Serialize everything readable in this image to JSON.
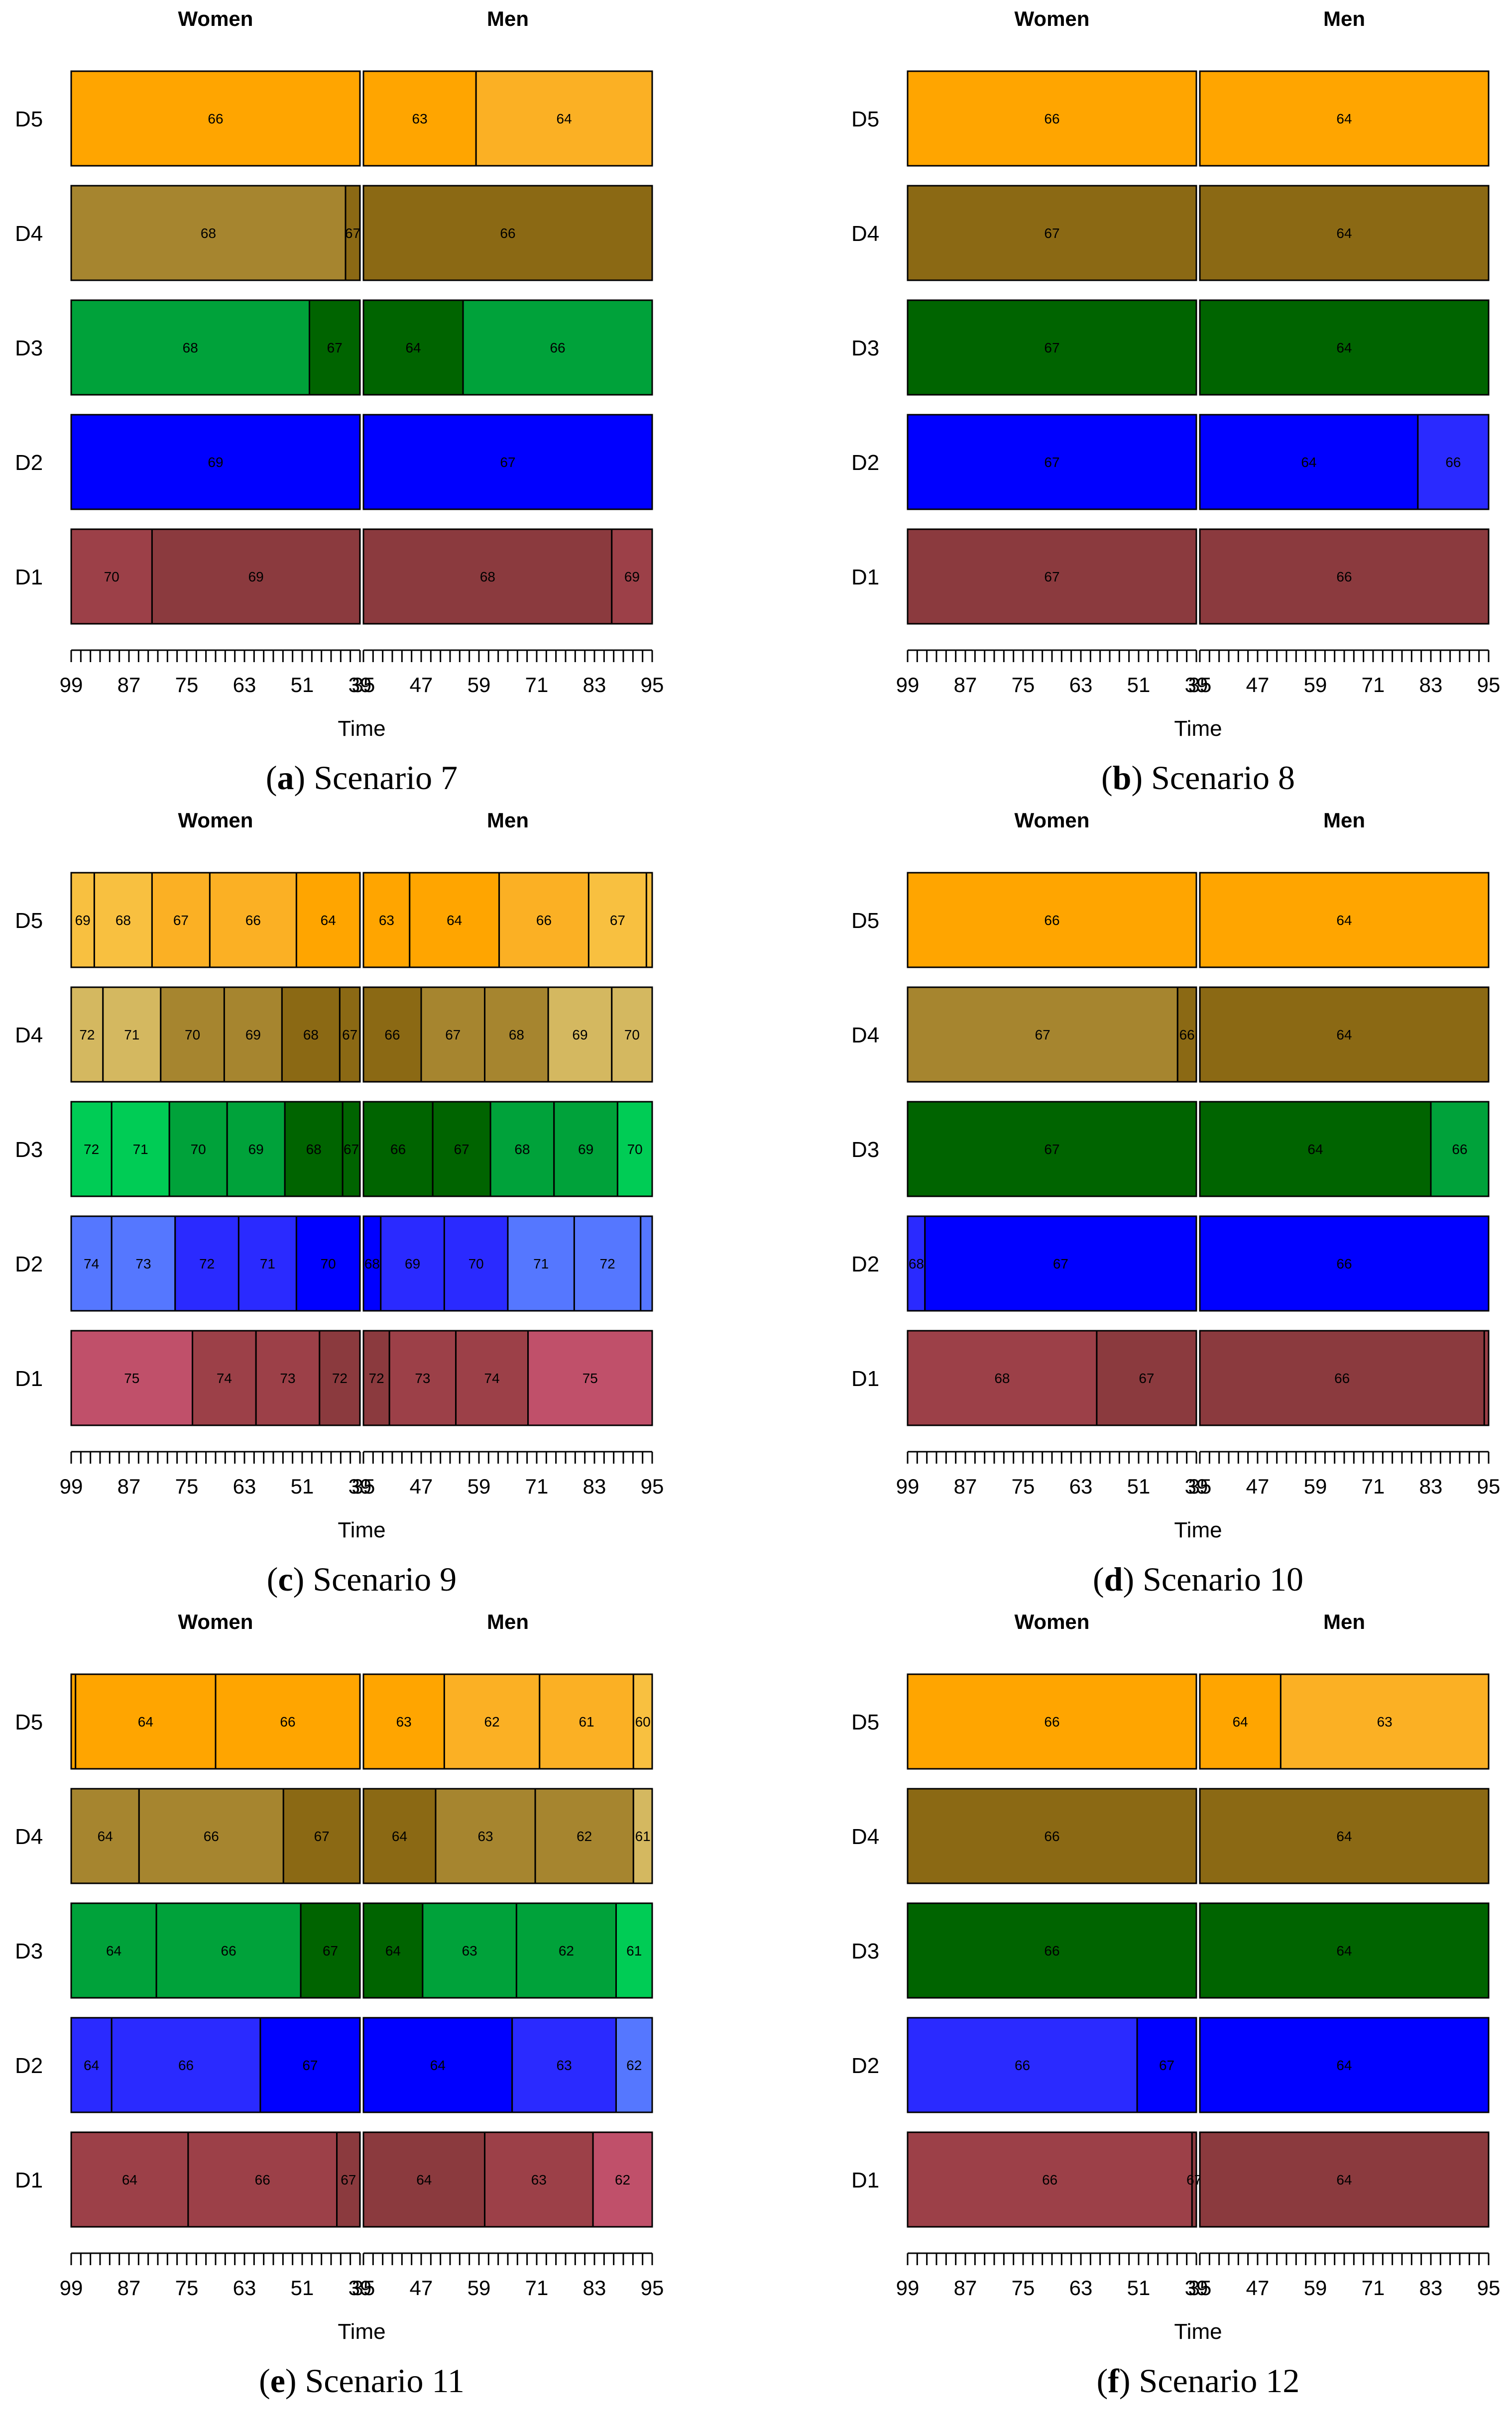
{
  "rows": [
    "D1",
    "D2",
    "D3",
    "D4",
    "D5"
  ],
  "shared": {
    "women_label": "Women",
    "men_label": "Men",
    "xlabel": "Time",
    "women_ticks": [
      "99",
      "87",
      "75",
      "63",
      "51",
      "39"
    ],
    "men_ticks": [
      "35",
      "47",
      "59",
      "71",
      "83",
      "95"
    ]
  },
  "colors": {
    "D1": {
      "light": "#c0506a",
      "mid": "#9c4048",
      "dark": "#8b3a3e"
    },
    "D2": {
      "light": "#5577ff",
      "mid": "#2a2aff",
      "dark": "#0000ff"
    },
    "D3": {
      "light": "#00cc55",
      "mid": "#00a23a",
      "dark": "#006400"
    },
    "D4": {
      "light": "#d4b860",
      "mid": "#a6852f",
      "dark": "#8b6914"
    },
    "D5": {
      "light": "#f8c040",
      "mid": "#fbb024",
      "dark": "#ffa500"
    }
  },
  "chart_data": [
    {
      "type": "bar",
      "caption_letter": "a",
      "caption_text": "Scenario 7",
      "women": {
        "D5": [
          {
            "label": "66",
            "width": 1.0,
            "shade": "dark"
          }
        ],
        "D4": [
          {
            "label": "68",
            "width": 0.95,
            "shade": "mid"
          },
          {
            "label": "67",
            "width": 0.05,
            "shade": "dark"
          }
        ],
        "D3": [
          {
            "label": "68",
            "width": 0.825,
            "shade": "mid"
          },
          {
            "label": "67",
            "width": 0.175,
            "shade": "dark"
          }
        ],
        "D2": [
          {
            "label": "69",
            "width": 1.0,
            "shade": "dark"
          }
        ],
        "D1": [
          {
            "label": "70",
            "width": 0.28,
            "shade": "mid"
          },
          {
            "label": "69",
            "width": 0.72,
            "shade": "dark"
          }
        ]
      },
      "men": {
        "D5": [
          {
            "label": "63",
            "width": 0.39,
            "shade": "dark"
          },
          {
            "label": "64",
            "width": 0.61,
            "shade": "mid"
          }
        ],
        "D4": [
          {
            "label": "66",
            "width": 1.0,
            "shade": "dark"
          }
        ],
        "D3": [
          {
            "label": "64",
            "width": 0.345,
            "shade": "dark"
          },
          {
            "label": "66",
            "width": 0.655,
            "shade": "mid"
          }
        ],
        "D2": [
          {
            "label": "67",
            "width": 1.0,
            "shade": "dark"
          }
        ],
        "D1": [
          {
            "label": "68",
            "width": 0.86,
            "shade": "dark"
          },
          {
            "label": "69",
            "width": 0.14,
            "shade": "mid"
          }
        ]
      }
    },
    {
      "type": "bar",
      "caption_letter": "b",
      "caption_text": "Scenario 8",
      "women": {
        "D5": [
          {
            "label": "66",
            "width": 1.0,
            "shade": "dark"
          }
        ],
        "D4": [
          {
            "label": "67",
            "width": 1.0,
            "shade": "dark"
          }
        ],
        "D3": [
          {
            "label": "67",
            "width": 1.0,
            "shade": "dark"
          }
        ],
        "D2": [
          {
            "label": "67",
            "width": 1.0,
            "shade": "dark"
          }
        ],
        "D1": [
          {
            "label": "67",
            "width": 1.0,
            "shade": "dark"
          }
        ]
      },
      "men": {
        "D5": [
          {
            "label": "64",
            "width": 1.0,
            "shade": "dark"
          }
        ],
        "D4": [
          {
            "label": "64",
            "width": 1.0,
            "shade": "dark"
          }
        ],
        "D3": [
          {
            "label": "64",
            "width": 1.0,
            "shade": "dark"
          }
        ],
        "D2": [
          {
            "label": "64",
            "width": 0.755,
            "shade": "dark"
          },
          {
            "label": "66",
            "width": 0.245,
            "shade": "mid"
          }
        ],
        "D1": [
          {
            "label": "66",
            "width": 1.0,
            "shade": "dark"
          }
        ]
      }
    },
    {
      "type": "bar",
      "caption_letter": "c",
      "caption_text": "Scenario 9",
      "women": {
        "D5": [
          {
            "label": "69",
            "width": 0.08,
            "shade": "light"
          },
          {
            "label": "68",
            "width": 0.2,
            "shade": "light"
          },
          {
            "label": "67",
            "width": 0.2,
            "shade": "mid"
          },
          {
            "label": "66",
            "width": 0.3,
            "shade": "mid"
          },
          {
            "label": "64",
            "width": 0.22,
            "shade": "dark"
          }
        ],
        "D4": [
          {
            "label": "72",
            "width": 0.11,
            "shade": "light"
          },
          {
            "label": "71",
            "width": 0.2,
            "shade": "light"
          },
          {
            "label": "70",
            "width": 0.22,
            "shade": "mid"
          },
          {
            "label": "69",
            "width": 0.2,
            "shade": "mid"
          },
          {
            "label": "68",
            "width": 0.2,
            "shade": "dark"
          },
          {
            "label": "67",
            "width": 0.07,
            "shade": "dark"
          }
        ],
        "D3": [
          {
            "label": "72",
            "width": 0.14,
            "shade": "light"
          },
          {
            "label": "71",
            "width": 0.2,
            "shade": "light"
          },
          {
            "label": "70",
            "width": 0.2,
            "shade": "mid"
          },
          {
            "label": "69",
            "width": 0.2,
            "shade": "mid"
          },
          {
            "label": "68",
            "width": 0.2,
            "shade": "dark"
          },
          {
            "label": "67",
            "width": 0.06,
            "shade": "dark"
          }
        ],
        "D2": [
          {
            "label": "74",
            "width": 0.14,
            "shade": "light"
          },
          {
            "label": "73",
            "width": 0.22,
            "shade": "light"
          },
          {
            "label": "72",
            "width": 0.22,
            "shade": "mid"
          },
          {
            "label": "71",
            "width": 0.2,
            "shade": "mid"
          },
          {
            "label": "70",
            "width": 0.22,
            "shade": "dark"
          }
        ],
        "D1": [
          {
            "label": "75",
            "width": 0.42,
            "shade": "light"
          },
          {
            "label": "74",
            "width": 0.22,
            "shade": "mid"
          },
          {
            "label": "73",
            "width": 0.22,
            "shade": "mid"
          },
          {
            "label": "72",
            "width": 0.14,
            "shade": "dark"
          }
        ]
      },
      "men": {
        "D5": [
          {
            "label": "63",
            "width": 0.16,
            "shade": "dark"
          },
          {
            "label": "64",
            "width": 0.31,
            "shade": "dark"
          },
          {
            "label": "66",
            "width": 0.31,
            "shade": "mid"
          },
          {
            "label": "67",
            "width": 0.2,
            "shade": "light"
          },
          {
            "label": "",
            "width": 0.02,
            "shade": "light"
          }
        ],
        "D4": [
          {
            "label": "66",
            "width": 0.2,
            "shade": "dark"
          },
          {
            "label": "67",
            "width": 0.22,
            "shade": "mid"
          },
          {
            "label": "68",
            "width": 0.22,
            "shade": "mid"
          },
          {
            "label": "69",
            "width": 0.22,
            "shade": "light"
          },
          {
            "label": "70",
            "width": 0.14,
            "shade": "light"
          }
        ],
        "D3": [
          {
            "label": "66",
            "width": 0.24,
            "shade": "dark"
          },
          {
            "label": "67",
            "width": 0.2,
            "shade": "dark"
          },
          {
            "label": "68",
            "width": 0.22,
            "shade": "mid"
          },
          {
            "label": "69",
            "width": 0.22,
            "shade": "mid"
          },
          {
            "label": "70",
            "width": 0.12,
            "shade": "light"
          }
        ],
        "D2": [
          {
            "label": "68",
            "width": 0.06,
            "shade": "dark"
          },
          {
            "label": "69",
            "width": 0.22,
            "shade": "mid"
          },
          {
            "label": "70",
            "width": 0.22,
            "shade": "mid"
          },
          {
            "label": "71",
            "width": 0.23,
            "shade": "light"
          },
          {
            "label": "72",
            "width": 0.23,
            "shade": "light"
          },
          {
            "label": "",
            "width": 0.04,
            "shade": "light"
          }
        ],
        "D1": [
          {
            "label": "72",
            "width": 0.09,
            "shade": "dark"
          },
          {
            "label": "73",
            "width": 0.23,
            "shade": "mid"
          },
          {
            "label": "74",
            "width": 0.25,
            "shade": "mid"
          },
          {
            "label": "75",
            "width": 0.43,
            "shade": "light"
          }
        ]
      }
    },
    {
      "type": "bar",
      "caption_letter": "d",
      "caption_text": "Scenario 10",
      "women": {
        "D5": [
          {
            "label": "66",
            "width": 1.0,
            "shade": "dark"
          }
        ],
        "D4": [
          {
            "label": "67",
            "width": 0.935,
            "shade": "mid"
          },
          {
            "label": "66",
            "width": 0.065,
            "shade": "dark"
          }
        ],
        "D3": [
          {
            "label": "67",
            "width": 1.0,
            "shade": "dark"
          }
        ],
        "D2": [
          {
            "label": "68",
            "width": 0.06,
            "shade": "mid"
          },
          {
            "label": "67",
            "width": 0.94,
            "shade": "dark"
          }
        ],
        "D1": [
          {
            "label": "68",
            "width": 0.655,
            "shade": "mid"
          },
          {
            "label": "67",
            "width": 0.345,
            "shade": "dark"
          }
        ]
      },
      "men": {
        "D5": [
          {
            "label": "64",
            "width": 1.0,
            "shade": "dark"
          }
        ],
        "D4": [
          {
            "label": "64",
            "width": 1.0,
            "shade": "dark"
          }
        ],
        "D3": [
          {
            "label": "64",
            "width": 0.8,
            "shade": "dark"
          },
          {
            "label": "66",
            "width": 0.2,
            "shade": "mid"
          }
        ],
        "D2": [
          {
            "label": "66",
            "width": 1.0,
            "shade": "dark"
          }
        ],
        "D1": [
          {
            "label": "66",
            "width": 0.985,
            "shade": "dark"
          },
          {
            "label": "",
            "width": 0.015,
            "shade": "mid"
          }
        ]
      }
    },
    {
      "type": "bar",
      "caption_letter": "e",
      "caption_text": "Scenario 11",
      "women": {
        "D5": [
          {
            "label": "",
            "width": 0.015,
            "shade": "dark"
          },
          {
            "label": "64",
            "width": 0.485,
            "shade": "dark"
          },
          {
            "label": "66",
            "width": 0.5,
            "shade": "dark"
          }
        ],
        "D4": [
          {
            "label": "64",
            "width": 0.235,
            "shade": "mid"
          },
          {
            "label": "66",
            "width": 0.5,
            "shade": "mid"
          },
          {
            "label": "67",
            "width": 0.265,
            "shade": "dark"
          }
        ],
        "D3": [
          {
            "label": "64",
            "width": 0.295,
            "shade": "mid"
          },
          {
            "label": "66",
            "width": 0.5,
            "shade": "mid"
          },
          {
            "label": "67",
            "width": 0.205,
            "shade": "dark"
          }
        ],
        "D2": [
          {
            "label": "64",
            "width": 0.14,
            "shade": "mid"
          },
          {
            "label": "66",
            "width": 0.515,
            "shade": "mid"
          },
          {
            "label": "67",
            "width": 0.345,
            "shade": "dark"
          }
        ],
        "D1": [
          {
            "label": "64",
            "width": 0.405,
            "shade": "mid"
          },
          {
            "label": "66",
            "width": 0.515,
            "shade": "mid"
          },
          {
            "label": "67",
            "width": 0.08,
            "shade": "dark"
          }
        ]
      },
      "men": {
        "D5": [
          {
            "label": "63",
            "width": 0.28,
            "shade": "dark"
          },
          {
            "label": "62",
            "width": 0.33,
            "shade": "mid"
          },
          {
            "label": "61",
            "width": 0.325,
            "shade": "mid"
          },
          {
            "label": "60",
            "width": 0.065,
            "shade": "light"
          }
        ],
        "D4": [
          {
            "label": "64",
            "width": 0.25,
            "shade": "dark"
          },
          {
            "label": "63",
            "width": 0.345,
            "shade": "mid"
          },
          {
            "label": "62",
            "width": 0.34,
            "shade": "mid"
          },
          {
            "label": "61",
            "width": 0.065,
            "shade": "light"
          }
        ],
        "D3": [
          {
            "label": "64",
            "width": 0.205,
            "shade": "dark"
          },
          {
            "label": "63",
            "width": 0.325,
            "shade": "mid"
          },
          {
            "label": "62",
            "width": 0.345,
            "shade": "mid"
          },
          {
            "label": "61",
            "width": 0.125,
            "shade": "light"
          }
        ],
        "D2": [
          {
            "label": "64",
            "width": 0.515,
            "shade": "dark"
          },
          {
            "label": "63",
            "width": 0.36,
            "shade": "mid"
          },
          {
            "label": "62",
            "width": 0.125,
            "shade": "light"
          }
        ],
        "D1": [
          {
            "label": "64",
            "width": 0.42,
            "shade": "dark"
          },
          {
            "label": "63",
            "width": 0.375,
            "shade": "mid"
          },
          {
            "label": "62",
            "width": 0.205,
            "shade": "light"
          }
        ]
      }
    },
    {
      "type": "bar",
      "caption_letter": "f",
      "caption_text": "Scenario 12",
      "women": {
        "D5": [
          {
            "label": "66",
            "width": 1.0,
            "shade": "dark"
          }
        ],
        "D4": [
          {
            "label": "66",
            "width": 1.0,
            "shade": "dark"
          }
        ],
        "D3": [
          {
            "label": "66",
            "width": 1.0,
            "shade": "dark"
          }
        ],
        "D2": [
          {
            "label": "66",
            "width": 0.795,
            "shade": "mid"
          },
          {
            "label": "67",
            "width": 0.205,
            "shade": "dark"
          }
        ],
        "D1": [
          {
            "label": "66",
            "width": 0.985,
            "shade": "mid"
          },
          {
            "label": "67",
            "width": 0.015,
            "shade": "dark"
          }
        ]
      },
      "men": {
        "D5": [
          {
            "label": "64",
            "width": 0.28,
            "shade": "dark"
          },
          {
            "label": "63",
            "width": 0.72,
            "shade": "mid"
          }
        ],
        "D4": [
          {
            "label": "64",
            "width": 1.0,
            "shade": "dark"
          }
        ],
        "D3": [
          {
            "label": "64",
            "width": 1.0,
            "shade": "dark"
          }
        ],
        "D2": [
          {
            "label": "64",
            "width": 1.0,
            "shade": "dark"
          }
        ],
        "D1": [
          {
            "label": "64",
            "width": 1.0,
            "shade": "dark"
          }
        ]
      }
    }
  ]
}
